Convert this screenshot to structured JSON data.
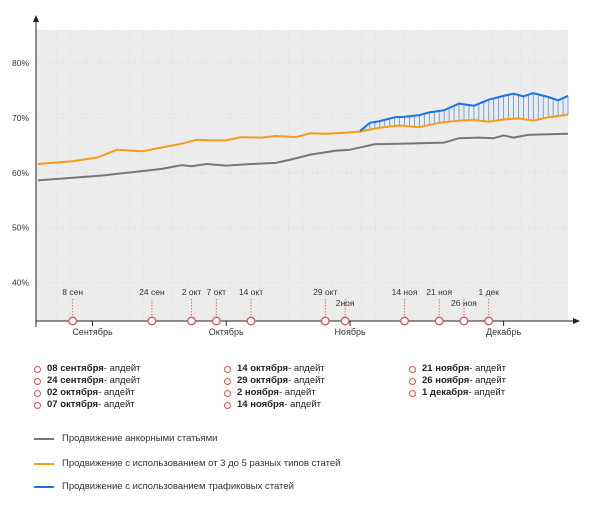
{
  "chart_data": {
    "type": "line",
    "title": "",
    "ylim": [
      33,
      86
    ],
    "yticks": [
      "40%",
      "50%",
      "60%",
      "70%",
      "80%"
    ],
    "ytick_values": [
      40,
      50,
      60,
      70,
      80
    ],
    "x_range": [
      "2017-09-01",
      "2017-12-17"
    ],
    "months": [
      {
        "label": "Сентябрь",
        "date": "2017-09-12"
      },
      {
        "label": "Октябрь",
        "date": "2017-10-09"
      },
      {
        "label": "Ноябрь",
        "date": "2017-11-03"
      },
      {
        "label": "Декабрь",
        "date": "2017-12-04"
      }
    ],
    "update_markers": [
      {
        "label": "8 сен",
        "date": "2017-09-08"
      },
      {
        "label": "24 сен",
        "date": "2017-09-24"
      },
      {
        "label": "2 окт",
        "date": "2017-10-02"
      },
      {
        "label": "7 окт",
        "date": "2017-10-07"
      },
      {
        "label": "14 окт",
        "date": "2017-10-14"
      },
      {
        "label": "29 окт",
        "date": "2017-10-29"
      },
      {
        "label": "2ноя",
        "date": "2017-11-02"
      },
      {
        "label": "14 ноя",
        "date": "2017-11-14"
      },
      {
        "label": "21 ноя",
        "date": "2017-11-21"
      },
      {
        "label": "26 ноя",
        "date": "2017-11-26"
      },
      {
        "label": "1 дек",
        "date": "2017-12-01"
      }
    ],
    "grid": true,
    "legend_position": "bottom",
    "series": [
      {
        "name": "Продвижение анкорными статьями",
        "color": "#777777",
        "points": [
          [
            "2017-09-01",
            58.6
          ],
          [
            "2017-09-08",
            59.1
          ],
          [
            "2017-09-14",
            59.5
          ],
          [
            "2017-09-20",
            60.1
          ],
          [
            "2017-09-26",
            60.7
          ],
          [
            "2017-09-30",
            61.4
          ],
          [
            "2017-10-02",
            61.2
          ],
          [
            "2017-10-05",
            61.6
          ],
          [
            "2017-10-09",
            61.3
          ],
          [
            "2017-10-14",
            61.6
          ],
          [
            "2017-10-19",
            61.8
          ],
          [
            "2017-10-22",
            62.4
          ],
          [
            "2017-10-26",
            63.3
          ],
          [
            "2017-10-31",
            64.0
          ],
          [
            "2017-11-03",
            64.2
          ],
          [
            "2017-11-08",
            65.2
          ],
          [
            "2017-11-13",
            65.3
          ],
          [
            "2017-11-18",
            65.4
          ],
          [
            "2017-11-22",
            65.5
          ],
          [
            "2017-11-25",
            66.3
          ],
          [
            "2017-11-29",
            66.4
          ],
          [
            "2017-12-02",
            66.3
          ],
          [
            "2017-12-04",
            66.8
          ],
          [
            "2017-12-06",
            66.4
          ],
          [
            "2017-12-09",
            66.9
          ],
          [
            "2017-12-13",
            67.0
          ],
          [
            "2017-12-17",
            67.1
          ]
        ]
      },
      {
        "name": "Продвижение с использованием от 3 до 5 разных типов статей",
        "color": "#f59c1a",
        "points": [
          [
            "2017-09-01",
            61.6
          ],
          [
            "2017-09-08",
            62.1
          ],
          [
            "2017-09-13",
            62.8
          ],
          [
            "2017-09-17",
            64.2
          ],
          [
            "2017-09-22",
            63.9
          ],
          [
            "2017-09-26",
            64.6
          ],
          [
            "2017-09-30",
            65.3
          ],
          [
            "2017-10-03",
            66.0
          ],
          [
            "2017-10-06",
            65.9
          ],
          [
            "2017-10-09",
            65.9
          ],
          [
            "2017-10-12",
            66.5
          ],
          [
            "2017-10-16",
            66.4
          ],
          [
            "2017-10-19",
            66.7
          ],
          [
            "2017-10-23",
            66.5
          ],
          [
            "2017-10-26",
            67.2
          ],
          [
            "2017-10-29",
            67.1
          ],
          [
            "2017-11-02",
            67.3
          ],
          [
            "2017-11-05",
            67.5
          ],
          [
            "2017-11-09",
            68.2
          ],
          [
            "2017-11-13",
            68.6
          ],
          [
            "2017-11-17",
            68.3
          ],
          [
            "2017-11-21",
            69.1
          ],
          [
            "2017-11-25",
            69.5
          ],
          [
            "2017-11-28",
            69.6
          ],
          [
            "2017-12-01",
            69.3
          ],
          [
            "2017-12-04",
            69.7
          ],
          [
            "2017-12-07",
            69.9
          ],
          [
            "2017-12-10",
            69.5
          ],
          [
            "2017-12-13",
            70.1
          ],
          [
            "2017-12-17",
            70.6
          ]
        ]
      },
      {
        "name": "Продвижение с использованием трафиковых статей",
        "color": "#1a73e8",
        "points": [
          [
            "2017-11-05",
            67.6
          ],
          [
            "2017-11-07",
            69.1
          ],
          [
            "2017-11-09",
            69.4
          ],
          [
            "2017-11-12",
            70.1
          ],
          [
            "2017-11-14",
            70.2
          ],
          [
            "2017-11-17",
            70.5
          ],
          [
            "2017-11-19",
            71.0
          ],
          [
            "2017-11-22",
            71.4
          ],
          [
            "2017-11-25",
            72.6
          ],
          [
            "2017-11-28",
            72.2
          ],
          [
            "2017-12-01",
            73.3
          ],
          [
            "2017-12-04",
            74.0
          ],
          [
            "2017-12-06",
            74.4
          ],
          [
            "2017-12-08",
            73.9
          ],
          [
            "2017-12-10",
            74.5
          ],
          [
            "2017-12-13",
            73.8
          ],
          [
            "2017-12-15",
            73.2
          ],
          [
            "2017-12-17",
            74.0
          ]
        ]
      }
    ]
  },
  "updates": {
    "suffix": " - апдейт",
    "columns": [
      [
        "08 сентября",
        "24 сентября",
        "02 октября",
        "07 октября"
      ],
      [
        "14 октября",
        "29 октября",
        "2 ноября",
        "14 ноября"
      ],
      [
        "21 ноября",
        "26 ноября",
        "1 декабря"
      ]
    ]
  },
  "legend": [
    {
      "label": "Продвижение анкорными статьями",
      "color": "#777777"
    },
    {
      "label": "Продвижение с использованием от 3 до 5 разных типов статей",
      "color": "#f59c1a"
    },
    {
      "label": "Продвижение с использованием трафиковых статей",
      "color": "#1a73e8"
    }
  ]
}
